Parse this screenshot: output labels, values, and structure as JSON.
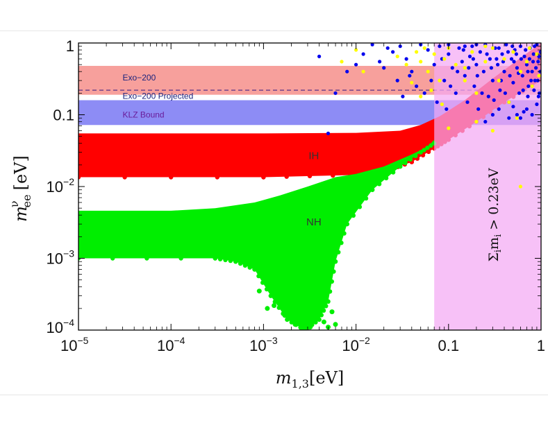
{
  "chart_data": {
    "type": "scatter",
    "x_scale": "log",
    "y_scale": "log",
    "xlim": [
      1e-05,
      1
    ],
    "ylim": [
      0.0001,
      1
    ],
    "xlabel_main": "m",
    "xlabel_sub": "1,3",
    "xlabel_unit": "[eV]",
    "ylabel_main": "m",
    "ylabel_sup": "ν",
    "ylabel_sub": "ee",
    "ylabel_unit": "[eV]",
    "x_ticks": [
      {
        "value": 1e-05,
        "base": "10",
        "exp": "−5",
        "text": ""
      },
      {
        "value": 0.0001,
        "base": "10",
        "exp": "−4",
        "text": ""
      },
      {
        "value": 0.001,
        "base": "10",
        "exp": "−3",
        "text": ""
      },
      {
        "value": 0.01,
        "base": "10",
        "exp": "−2",
        "text": ""
      },
      {
        "value": 0.1,
        "base": "",
        "exp": "",
        "text": "0.1"
      },
      {
        "value": 1,
        "base": "",
        "exp": "",
        "text": "1"
      }
    ],
    "y_ticks": [
      {
        "value": 1,
        "base": "",
        "exp": "",
        "text": "1"
      },
      {
        "value": 0.1,
        "base": "",
        "exp": "",
        "text": "0.1"
      },
      {
        "value": 0.01,
        "base": "10",
        "exp": "−2",
        "text": ""
      },
      {
        "value": 0.001,
        "base": "10",
        "exp": "−3",
        "text": ""
      },
      {
        "value": 0.0001,
        "base": "10",
        "exp": "−4",
        "text": ""
      }
    ],
    "bands": [
      {
        "name": "Exo-200",
        "label": "Exo−200",
        "y_low": 0.19,
        "y_high": 0.48,
        "color": "#f7a09c",
        "label_color": "#1a237e",
        "label_x": 3e-05,
        "label_y": 0.33
      },
      {
        "name": "KLZ Bound",
        "label": "KLZ Bound",
        "y_low": 0.072,
        "y_high": 0.16,
        "color": "#8d8cf5",
        "label_color": "#6a1b9a",
        "label_x": 3e-05,
        "label_y": 0.1
      }
    ],
    "dashed_line": {
      "name": "Exo-200 Projected",
      "label": "Exo−200 Projected",
      "y": 0.22,
      "color": "#7b4a8c",
      "label_color": "#1a237e",
      "label_x": 3e-05,
      "label_y": 0.16
    },
    "exclusion_region": {
      "x_low": 0.07,
      "x_high": 1,
      "color": "#f4a9f4",
      "label": "Σ",
      "label_sub": "i",
      "label_rest": "m",
      "label_rest_sub": "i",
      "label_tail": " > 0.23eV"
    },
    "regions": [
      {
        "name": "IH",
        "label": "IH",
        "color": "#ff0000",
        "upper": [
          [
            1e-05,
            0.055
          ],
          [
            0.001,
            0.055
          ],
          [
            0.01,
            0.056
          ],
          [
            0.03,
            0.06
          ],
          [
            0.05,
            0.072
          ],
          [
            0.08,
            0.095
          ],
          [
            0.15,
            0.16
          ],
          [
            0.3,
            0.32
          ],
          [
            0.6,
            0.62
          ],
          [
            1,
            1
          ]
        ],
        "lower": [
          [
            1e-05,
            0.0135
          ],
          [
            0.001,
            0.0135
          ],
          [
            0.01,
            0.0145
          ],
          [
            0.02,
            0.016
          ],
          [
            0.04,
            0.022
          ],
          [
            0.07,
            0.034
          ],
          [
            0.1,
            0.045
          ],
          [
            0.2,
            0.08
          ],
          [
            0.4,
            0.15
          ],
          [
            1,
            0.3
          ]
        ],
        "label_x": 0.0035,
        "label_y": 0.027
      },
      {
        "name": "NH",
        "label": "NH",
        "color": "#00ee00",
        "upper": [
          [
            1e-05,
            0.0046
          ],
          [
            0.0001,
            0.0046
          ],
          [
            0.0003,
            0.005
          ],
          [
            0.0008,
            0.006
          ],
          [
            0.0015,
            0.0075
          ],
          [
            0.003,
            0.01
          ],
          [
            0.006,
            0.0135
          ],
          [
            0.01,
            0.015
          ],
          [
            0.02,
            0.019
          ],
          [
            0.04,
            0.028
          ],
          [
            0.06,
            0.036
          ],
          [
            0.07,
            0.045
          ]
        ],
        "lower": [
          [
            0.07,
            0.04
          ],
          [
            0.05,
            0.03
          ],
          [
            0.03,
            0.019
          ],
          [
            0.015,
            0.009
          ],
          [
            0.008,
            0.003
          ],
          [
            0.006,
            0.0009
          ],
          [
            0.005,
            0.00025
          ],
          [
            0.004,
            0.00014
          ],
          [
            0.0028,
            0.0001
          ],
          [
            0.0018,
            0.00014
          ],
          [
            0.0012,
            0.0003
          ],
          [
            0.0008,
            0.0007
          ],
          [
            0.0005,
            0.0009
          ],
          [
            0.0003,
            0.001
          ],
          [
            1e-05,
            0.001
          ]
        ],
        "label_x": 0.0035,
        "label_y": 0.0032
      }
    ],
    "scatter_series": [
      {
        "name": "blue points",
        "color": "#0000ee",
        "points": [
          [
            0.05,
            0.95
          ],
          [
            0.06,
            0.8
          ],
          [
            0.07,
            0.5
          ],
          [
            0.08,
            0.9
          ],
          [
            0.09,
            0.3
          ],
          [
            0.1,
            0.7
          ],
          [
            0.11,
            0.45
          ],
          [
            0.12,
            0.2
          ],
          [
            0.13,
            0.85
          ],
          [
            0.14,
            0.55
          ],
          [
            0.15,
            0.35
          ],
          [
            0.16,
            0.15
          ],
          [
            0.17,
            0.65
          ],
          [
            0.18,
            0.9
          ],
          [
            0.19,
            0.25
          ],
          [
            0.2,
            0.5
          ],
          [
            0.21,
            0.12
          ],
          [
            0.22,
            0.75
          ],
          [
            0.24,
            0.4
          ],
          [
            0.25,
            0.95
          ],
          [
            0.27,
            0.18
          ],
          [
            0.28,
            0.6
          ],
          [
            0.3,
            0.3
          ],
          [
            0.32,
            0.85
          ],
          [
            0.34,
            0.5
          ],
          [
            0.36,
            0.22
          ],
          [
            0.38,
            0.7
          ],
          [
            0.4,
            0.4
          ],
          [
            0.42,
            0.95
          ],
          [
            0.45,
            0.15
          ],
          [
            0.48,
            0.6
          ],
          [
            0.5,
            0.28
          ],
          [
            0.52,
            0.8
          ],
          [
            0.55,
            0.45
          ],
          [
            0.58,
            0.2
          ],
          [
            0.6,
            0.9
          ],
          [
            0.63,
            0.35
          ],
          [
            0.66,
            0.65
          ],
          [
            0.7,
            0.5
          ],
          [
            0.73,
            0.25
          ],
          [
            0.76,
            0.85
          ],
          [
            0.8,
            0.4
          ],
          [
            0.83,
            0.7
          ],
          [
            0.86,
            0.3
          ],
          [
            0.9,
            0.95
          ],
          [
            0.93,
            0.55
          ],
          [
            0.96,
            0.2
          ],
          [
            0.99,
            0.75
          ],
          [
            0.03,
            0.9
          ],
          [
            0.035,
            0.6
          ],
          [
            0.025,
            0.75
          ],
          [
            0.04,
            0.4
          ],
          [
            0.045,
            0.25
          ],
          [
            0.028,
            0.3
          ],
          [
            0.022,
            0.85
          ],
          [
            0.018,
            0.55
          ],
          [
            0.015,
            0.95
          ],
          [
            0.012,
            0.7
          ],
          [
            0.02,
            0.45
          ],
          [
            0.032,
            0.18
          ],
          [
            0.038,
            0.35
          ],
          [
            0.055,
            0.2
          ],
          [
            0.065,
            0.3
          ],
          [
            0.075,
            0.15
          ],
          [
            0.085,
            0.6
          ],
          [
            0.095,
            0.12
          ],
          [
            0.105,
            0.25
          ],
          [
            0.125,
            0.4
          ],
          [
            0.145,
            0.8
          ],
          [
            0.165,
            0.45
          ],
          [
            0.185,
            0.6
          ],
          [
            0.205,
            0.35
          ],
          [
            0.23,
            0.2
          ],
          [
            0.26,
            0.7
          ],
          [
            0.29,
            0.45
          ],
          [
            0.31,
            0.16
          ],
          [
            0.33,
            0.6
          ],
          [
            0.35,
            0.85
          ],
          [
            0.37,
            0.3
          ],
          [
            0.39,
            0.55
          ],
          [
            0.41,
            0.2
          ],
          [
            0.44,
            0.75
          ],
          [
            0.46,
            0.35
          ],
          [
            0.49,
            0.9
          ],
          [
            0.51,
            0.55
          ],
          [
            0.54,
            0.7
          ],
          [
            0.57,
            0.38
          ],
          [
            0.61,
            0.6
          ],
          [
            0.64,
            0.22
          ],
          [
            0.68,
            0.8
          ],
          [
            0.72,
            0.4
          ],
          [
            0.75,
            0.6
          ],
          [
            0.78,
            0.3
          ],
          [
            0.82,
            0.55
          ],
          [
            0.85,
            0.9
          ],
          [
            0.88,
            0.45
          ],
          [
            0.92,
            0.3
          ],
          [
            0.95,
            0.65
          ],
          [
            0.98,
            0.4
          ],
          [
            0.7,
            0.12
          ],
          [
            0.8,
            0.1
          ],
          [
            0.9,
            0.14
          ],
          [
            0.65,
            0.11
          ],
          [
            0.6,
            0.09
          ],
          [
            0.55,
            0.1
          ],
          [
            0.5,
            0.13
          ],
          [
            0.3,
            0.1
          ],
          [
            0.25,
            0.08
          ],
          [
            0.35,
            0.12
          ],
          [
            0.45,
            0.09
          ],
          [
            0.15,
            0.9
          ],
          [
            0.2,
            0.95
          ],
          [
            0.1,
            0.95
          ],
          [
            0.008,
            0.4
          ],
          [
            0.006,
            0.2
          ],
          [
            0.01,
            0.5
          ],
          [
            0.004,
            0.65
          ],
          [
            0.005,
            0.055
          ],
          [
            0.72,
            0.18
          ],
          [
            0.84,
            0.22
          ],
          [
            0.94,
            0.18
          ]
        ]
      },
      {
        "name": "yellow points",
        "color": "#ffff00",
        "points": [
          [
            0.045,
            0.75
          ],
          [
            0.05,
            0.55
          ],
          [
            0.055,
            0.85
          ],
          [
            0.06,
            0.4
          ],
          [
            0.07,
            0.7
          ],
          [
            0.08,
            0.3
          ],
          [
            0.09,
            0.6
          ],
          [
            0.1,
            0.85
          ],
          [
            0.12,
            0.5
          ],
          [
            0.15,
            0.3
          ],
          [
            0.18,
            0.75
          ],
          [
            0.2,
            0.2
          ],
          [
            0.25,
            0.55
          ],
          [
            0.3,
            0.85
          ],
          [
            0.35,
            0.3
          ],
          [
            0.4,
            0.6
          ],
          [
            0.45,
            0.15
          ],
          [
            0.5,
            0.75
          ],
          [
            0.6,
            0.4
          ],
          [
            0.7,
            0.55
          ],
          [
            0.8,
            0.25
          ],
          [
            0.9,
            0.7
          ],
          [
            0.035,
            0.5
          ],
          [
            0.04,
            0.28
          ],
          [
            0.028,
            0.65
          ],
          [
            0.012,
            0.4
          ],
          [
            0.05,
            0.18
          ],
          [
            0.065,
            0.22
          ],
          [
            0.085,
            0.14
          ],
          [
            0.1,
            0.065
          ],
          [
            0.2,
            0.08
          ],
          [
            0.3,
            0.06
          ],
          [
            0.55,
            0.09
          ],
          [
            0.6,
            0.01
          ],
          [
            0.95,
            0.35
          ],
          [
            0.75,
            0.85
          ],
          [
            0.25,
            0.9
          ],
          [
            0.15,
            0.45
          ],
          [
            0.01,
            0.8
          ],
          [
            0.007,
            0.55
          ]
        ]
      }
    ]
  }
}
